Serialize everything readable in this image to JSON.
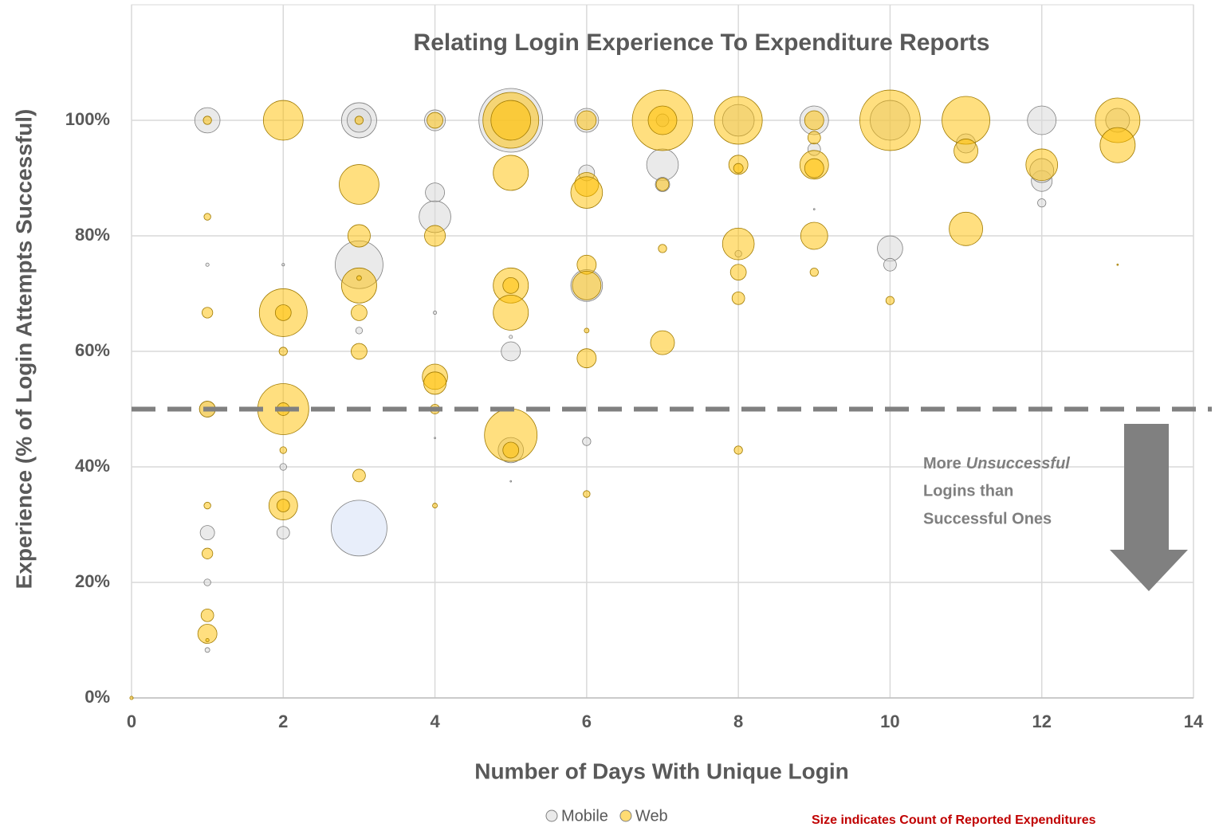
{
  "chart_data": {
    "type": "scatter",
    "title": "Relating Login Experience To Expenditure Reports",
    "x_label": "Number of Days With Unique Login",
    "y_label": "Experience (% of Login Attempts Successful)",
    "xlim": [
      0,
      14
    ],
    "xticks": [
      0,
      2,
      4,
      6,
      8,
      10,
      12,
      14
    ],
    "ylim": [
      0,
      120
    ],
    "yticks": [
      {
        "value": 0,
        "label": "0%"
      },
      {
        "value": 20,
        "label": "20%"
      },
      {
        "value": 40,
        "label": "40%"
      },
      {
        "value": 60,
        "label": "60%"
      },
      {
        "value": 80,
        "label": "80%"
      },
      {
        "value": 100,
        "label": "100%"
      }
    ],
    "grid": true,
    "legend": "bottom",
    "reference_line": {
      "y": 50,
      "color": "#808080"
    },
    "annotation": {
      "parts": [
        "More",
        "Unsuccessful",
        "Logins than",
        "Successful Ones"
      ]
    },
    "size_note": "Size indicates Count of Reported Expenditures",
    "series": [
      {
        "name": "Mobile",
        "color": "#d9d9d9",
        "x": [
          1,
          1,
          1,
          1,
          1,
          1,
          2,
          2,
          2,
          3,
          3,
          3,
          3,
          4,
          4,
          4,
          4,
          4,
          5,
          5,
          5,
          5,
          5,
          6,
          6,
          6,
          6,
          7,
          7,
          7,
          8,
          8,
          9,
          9,
          9,
          10,
          10,
          10,
          11,
          12,
          12,
          12,
          12,
          13
        ],
        "y": [
          100,
          28.6,
          20,
          8.3,
          75,
          50,
          75,
          40,
          28.6,
          100,
          75,
          63.6,
          100,
          100,
          87.5,
          83.3,
          66.7,
          45,
          100,
          60,
          42.9,
          62.5,
          37.5,
          100,
          90.9,
          71.4,
          44.4,
          92.3,
          88.9,
          100,
          100,
          76.9,
          100,
          95,
          84.6,
          100,
          77.8,
          75,
          96,
          100,
          89.5,
          85.7,
          91.3,
          100
        ],
        "size": [
          28,
          9,
          2,
          1,
          0.5,
          11,
          0.3,
          2,
          7,
          54,
          100,
          2,
          25,
          19,
          16,
          44,
          0.5,
          0.1,
          178,
          16,
          28,
          0.5,
          0.1,
          25,
          11,
          44,
          3,
          44,
          9,
          7,
          44,
          2,
          36,
          7,
          0.1,
          69,
          28,
          7,
          16,
          36,
          19,
          3,
          25,
          25
        ]
      },
      {
        "name": "Web",
        "color": "#ffc000",
        "x": [
          0,
          1,
          1,
          1,
          1,
          1,
          1,
          1,
          1,
          1,
          2,
          2,
          2,
          2,
          2,
          2,
          2,
          2,
          2,
          3,
          3,
          3,
          3,
          3,
          3,
          3,
          3,
          4,
          4,
          4,
          4,
          4,
          4,
          5,
          5,
          5,
          5,
          5,
          5,
          5,
          5,
          6,
          6,
          6,
          6,
          6,
          6,
          6,
          6,
          7,
          7,
          7,
          7,
          7,
          8,
          8,
          8,
          8,
          8,
          8,
          8,
          9,
          9,
          9,
          9,
          9,
          9,
          10,
          10,
          11,
          11,
          11,
          12,
          13,
          13,
          13
        ],
        "y": [
          0,
          100,
          83.3,
          66.7,
          50,
          33.3,
          25,
          14.3,
          11.1,
          10,
          100,
          66.7,
          66.7,
          60,
          50,
          50,
          42.9,
          33.3,
          33.3,
          88.9,
          80,
          71.4,
          72.7,
          66.7,
          60,
          38.5,
          100,
          100,
          80,
          55.6,
          54.5,
          50,
          33.3,
          100,
          100,
          90.9,
          71.4,
          71.4,
          66.7,
          45.5,
          42.9,
          100,
          88.9,
          87.5,
          75,
          71.4,
          63.6,
          58.8,
          35.3,
          100,
          100,
          88.9,
          77.8,
          61.5,
          100,
          92.3,
          91.7,
          78.6,
          73.7,
          69.2,
          42.9,
          100,
          97,
          92.3,
          91.7,
          80,
          73.7,
          100,
          68.8,
          100,
          94.7,
          81.2,
          92.3,
          100,
          95.7,
          75
        ],
        "size": [
          0.5,
          3,
          2,
          5,
          11,
          2,
          5,
          7,
          16,
          0.5,
          69,
          100,
          11,
          3,
          114,
          7,
          2,
          36,
          7,
          69,
          22,
          54,
          1,
          11,
          11,
          7,
          3,
          11,
          19,
          28,
          22,
          4,
          1,
          136,
          69,
          54,
          54,
          11,
          54,
          121,
          11,
          16,
          25,
          44,
          16,
          36,
          1,
          16,
          2,
          160,
          36,
          7,
          3,
          25,
          100,
          16,
          4,
          44,
          11,
          7,
          3,
          16,
          7,
          36,
          16,
          32,
          3,
          160,
          3,
          100,
          25,
          49,
          44,
          87,
          54,
          0.1
        ]
      }
    ],
    "highlighted_point": {
      "x": 3,
      "y": 29.4,
      "size": 136,
      "color": "#e8eefa"
    }
  }
}
